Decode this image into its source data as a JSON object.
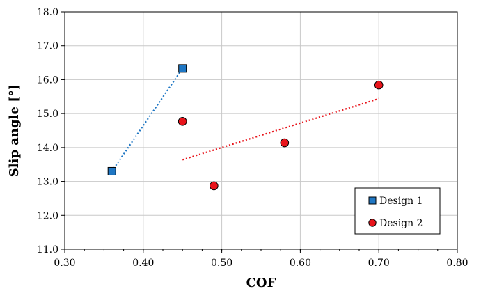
{
  "chart_data": {
    "type": "scatter",
    "title": "",
    "xlabel": "COF",
    "ylabel": "Slip angle [°]",
    "xlim": [
      0.3,
      0.8
    ],
    "ylim": [
      11.0,
      18.0
    ],
    "x_ticks": [
      "0.30",
      "0.40",
      "0.50",
      "0.60",
      "0.70",
      "0.80"
    ],
    "y_ticks": [
      "11.0",
      "12.0",
      "13.0",
      "14.0",
      "15.0",
      "16.0",
      "17.0",
      "18.0"
    ],
    "x_tick_values": [
      0.3,
      0.4,
      0.5,
      0.6,
      0.7,
      0.8
    ],
    "y_tick_values": [
      11.0,
      12.0,
      13.0,
      14.0,
      15.0,
      16.0,
      17.0,
      18.0
    ],
    "grid": true,
    "legend_position": "bottom-right",
    "series": [
      {
        "name": "Design 1",
        "marker": "square",
        "color": "#1f77c4",
        "trend_color": "#1f77c4",
        "x": [
          0.36,
          0.45
        ],
        "y": [
          13.3,
          16.33
        ],
        "trendline": {
          "x": [
            0.36,
            0.45
          ],
          "y": [
            13.3,
            16.33
          ]
        }
      },
      {
        "name": "Design 2",
        "marker": "circle",
        "color": "#e8141b",
        "trend_color": "#e8141b",
        "x": [
          0.45,
          0.49,
          0.58,
          0.7
        ],
        "y": [
          14.77,
          12.87,
          14.14,
          15.84
        ],
        "trendline": {
          "x": [
            0.45,
            0.7
          ],
          "y": [
            13.64,
            15.44
          ]
        }
      }
    ]
  }
}
